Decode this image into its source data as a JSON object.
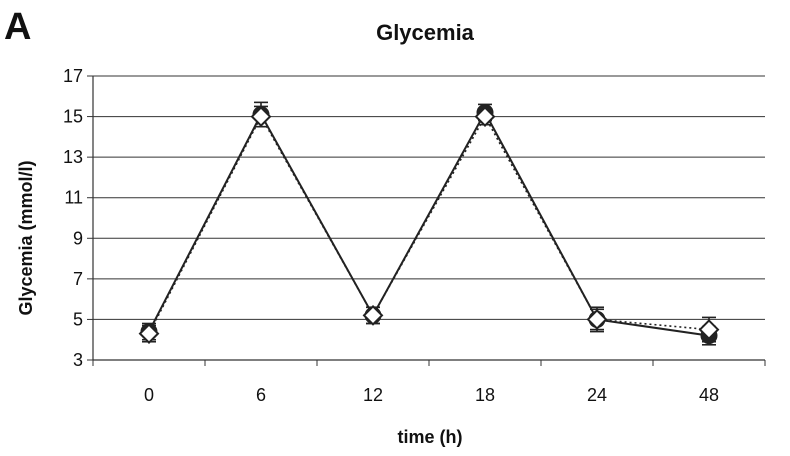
{
  "figure": {
    "panel_label": "A"
  },
  "chart_data": {
    "type": "line",
    "title": "Glycemia",
    "xlabel": "time  (h)",
    "ylabel": "Glycemia  (mmol/l)",
    "categories": [
      "0",
      "6",
      "12",
      "18",
      "24",
      "48"
    ],
    "ylim": [
      3,
      17
    ],
    "yticks": [
      3,
      5,
      7,
      9,
      11,
      13,
      15,
      17
    ],
    "grid": true,
    "legend": "none",
    "series": [
      {
        "marker": "filled-circle",
        "line": "solid",
        "color": "#222222",
        "values": [
          4.4,
          15.1,
          5.2,
          15.2,
          5.0,
          4.2
        ],
        "errors": [
          0.4,
          0.6,
          0.4,
          0.4,
          0.6,
          0.45
        ]
      },
      {
        "marker": "open-diamond",
        "line": "dotted",
        "color": "#222222",
        "values": [
          4.3,
          15.0,
          5.2,
          15.0,
          5.0,
          4.5
        ],
        "errors": [
          0.4,
          0.5,
          0.4,
          0.4,
          0.5,
          0.6
        ]
      }
    ]
  }
}
